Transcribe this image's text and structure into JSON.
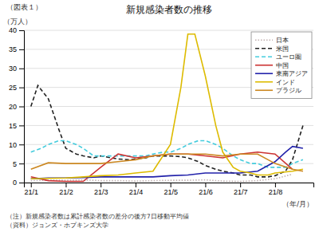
{
  "chart_data": {
    "type": "line",
    "title": "新規感染者数の推移",
    "subtitle": "（図表１）",
    "y_label": "（万人）",
    "x_label": "（年/月）",
    "annotations": [
      "（注）新規感染者数は累計感染者数の差分の後方7日移動平均値",
      "（資料）ジョンズ・ホプキンズ大学"
    ],
    "xlim": [
      -0.2,
      8.1
    ],
    "xticks": [
      {
        "value": 0,
        "label": "21/1"
      },
      {
        "value": 1,
        "label": "21/2"
      },
      {
        "value": 2,
        "label": "21/3"
      },
      {
        "value": 3,
        "label": "21/4"
      },
      {
        "value": 4,
        "label": "21/5"
      },
      {
        "value": 5,
        "label": "21/6"
      },
      {
        "value": 6,
        "label": "21/7"
      },
      {
        "value": 7,
        "label": "21/8"
      }
    ],
    "ylim": [
      0,
      40
    ],
    "yticks": [
      0,
      5,
      10,
      15,
      20,
      25,
      30,
      35,
      40
    ],
    "grid": true,
    "legend": "top-right",
    "series": [
      {
        "name": "日本",
        "color": "#c0b0b0",
        "line_style": "dotted",
        "x": [
          0,
          0.5,
          1.0,
          1.5,
          2.0,
          2.5,
          3.0,
          3.5,
          4.0,
          4.5,
          5.0,
          5.5,
          6.0,
          6.5,
          7.0,
          7.5
        ],
        "values": [
          0.5,
          0.6,
          0.6,
          0.7,
          0.5,
          0.5,
          0.4,
          0.5,
          0.6,
          0.6,
          0.7,
          0.4,
          0.3,
          0.5,
          1.0,
          2.2
        ]
      },
      {
        "name": "米国",
        "color": "#222222",
        "line_style": "dashed",
        "x": [
          0,
          0.2,
          0.5,
          0.8,
          1.0,
          1.3,
          1.5,
          1.8,
          2.0,
          2.3,
          2.5,
          2.8,
          3.0,
          3.3,
          3.5,
          3.8,
          4.0,
          4.3,
          4.5,
          4.8,
          5.0,
          5.3,
          5.5,
          5.8,
          6.0,
          6.3,
          6.5,
          6.8,
          7.0,
          7.3,
          7.5,
          7.8
        ],
        "values": [
          20,
          25.5,
          22,
          14,
          9,
          7.5,
          7,
          6.5,
          7,
          6.5,
          6.2,
          6,
          6.2,
          6.5,
          7,
          7,
          7,
          6.8,
          6.5,
          5.5,
          4.5,
          3.5,
          3,
          2.5,
          2,
          2,
          1.5,
          1.5,
          1.8,
          3,
          6,
          15
        ]
      },
      {
        "name": "ユーロ圏",
        "color": "#44ccdd",
        "line_style": "dashed",
        "x": [
          0,
          0.3,
          0.5,
          0.8,
          1.0,
          1.3,
          1.5,
          1.8,
          2.0,
          2.3,
          2.5,
          2.8,
          3.0,
          3.3,
          3.5,
          3.8,
          4.0,
          4.3,
          4.5,
          4.8,
          5.0,
          5.3,
          5.5,
          5.8,
          6.0,
          6.3,
          6.5,
          6.8,
          7.0,
          7.3,
          7.5,
          7.8
        ],
        "values": [
          8,
          9,
          10,
          11,
          11,
          10,
          9,
          7,
          7,
          7,
          7,
          7,
          7,
          7,
          7.5,
          8,
          8,
          9,
          10,
          11,
          11,
          10,
          9,
          7,
          6,
          5,
          5,
          4,
          4,
          4,
          5,
          6
        ]
      },
      {
        "name": "中国",
        "color": "#cc3333",
        "line_style": "solid",
        "x": [
          0,
          0.5,
          1.0,
          1.5,
          2.0,
          2.5,
          3.0,
          3.5,
          4.0,
          4.5,
          5.0,
          5.5,
          6.0,
          6.5,
          7.0,
          7.5
        ],
        "values": [
          1.5,
          0.5,
          0.3,
          0.3,
          4.0,
          7.5,
          6.5,
          7.0,
          7.5,
          7.5,
          7.0,
          6.5,
          7.5,
          8.0,
          7.5,
          3.5
        ]
      },
      {
        "name": "東南アジア",
        "color": "#2222aa",
        "line_style": "solid",
        "x": [
          0,
          0.5,
          1.0,
          1.5,
          2.0,
          2.5,
          3.0,
          3.5,
          4.0,
          4.5,
          5.0,
          5.5,
          6.0,
          6.5,
          7.0,
          7.3,
          7.5,
          7.8
        ],
        "values": [
          1.0,
          1.2,
          1.2,
          1.3,
          1.5,
          1.5,
          1.5,
          1.5,
          1.8,
          2.0,
          2.5,
          2.5,
          2.5,
          3.0,
          5.5,
          8.0,
          9.5,
          9.0
        ]
      },
      {
        "name": "インド",
        "color": "#ddbb00",
        "line_style": "solid",
        "x": [
          0,
          0.5,
          1.0,
          1.5,
          2.0,
          2.5,
          3.0,
          3.5,
          4.0,
          4.3,
          4.5,
          4.7,
          5.0,
          5.3,
          5.5,
          5.8,
          6.0,
          6.3,
          6.5,
          6.8,
          7.0,
          7.5,
          7.8
        ],
        "values": [
          1.0,
          1.1,
          1.2,
          1.5,
          1.8,
          2.0,
          2.5,
          3.0,
          10,
          25,
          39,
          39,
          28,
          15,
          8,
          4,
          3,
          2.5,
          2.0,
          2.0,
          2.5,
          3.0,
          3.5
        ]
      },
      {
        "name": "ブラジル",
        "color": "#cc8822",
        "line_style": "solid",
        "x": [
          0,
          0.5,
          1.0,
          1.5,
          2.0,
          2.5,
          3.0,
          3.5,
          4.0,
          4.5,
          5.0,
          5.5,
          6.0,
          6.5,
          7.0,
          7.5,
          7.8
        ],
        "values": [
          3.5,
          5.2,
          5.0,
          5.0,
          5.0,
          5.5,
          6.0,
          7.0,
          7.5,
          7.5,
          7.5,
          7.0,
          7.5,
          7.5,
          5.0,
          3.5,
          3.0
        ]
      }
    ]
  }
}
